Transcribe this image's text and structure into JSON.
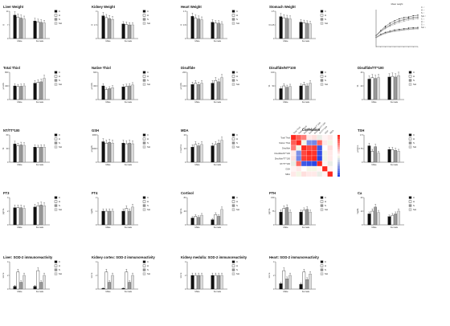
{
  "chart_data": [
    {
      "type": "bar",
      "title": "Liver Weight",
      "ylabel": "g",
      "ylim": [
        0,
        14
      ],
      "categories": [
        "Male",
        "Female"
      ],
      "series": [
        {
          "name": "C",
          "values": [
            12,
            9
          ]
        },
        {
          "name": "H",
          "values": [
            11,
            8.6
          ]
        },
        {
          "name": "S",
          "values": [
            10.5,
            8.3
          ]
        },
        {
          "name": "SH",
          "values": [
            10,
            8
          ]
        }
      ]
    },
    {
      "type": "bar",
      "title": "Kidney Weight",
      "ylabel": "g",
      "ylim": [
        0,
        3
      ],
      "categories": [
        "Male",
        "Female"
      ],
      "series": [
        {
          "name": "C",
          "values": [
            2.5,
            1.6
          ]
        },
        {
          "name": "H",
          "values": [
            2.3,
            1.55
          ]
        },
        {
          "name": "S",
          "values": [
            2.2,
            1.5
          ]
        },
        {
          "name": "SH",
          "values": [
            2.1,
            1.5
          ]
        }
      ]
    },
    {
      "type": "bar",
      "title": "Heart Weight",
      "ylabel": "g",
      "ylim": [
        0,
        1.6
      ],
      "categories": [
        "Male",
        "Female"
      ],
      "series": [
        {
          "name": "C",
          "values": [
            1.3,
            0.95
          ]
        },
        {
          "name": "H",
          "values": [
            1.2,
            0.9
          ]
        },
        {
          "name": "S",
          "values": [
            1.15,
            0.9
          ]
        },
        {
          "name": "SH",
          "values": [
            1.1,
            0.85
          ]
        }
      ]
    },
    {
      "type": "bar",
      "title": "Stomach Weight",
      "ylabel": "g",
      "ylim": [
        0,
        2.5
      ],
      "categories": [
        "Male",
        "Female"
      ],
      "series": [
        {
          "name": "C",
          "values": [
            2,
            1.5
          ]
        },
        {
          "name": "H",
          "values": [
            1.9,
            1.45
          ]
        },
        {
          "name": "S",
          "values": [
            1.85,
            1.4
          ]
        },
        {
          "name": "SH",
          "values": [
            1.8,
            1.35
          ]
        }
      ]
    },
    {
      "type": "bar",
      "title": "Total Thiol",
      "ylabel": "µmol/L",
      "ylim": [
        0,
        800
      ],
      "categories": [
        "Male",
        "Female"
      ],
      "series": [
        {
          "name": "C",
          "values": [
            400,
            480
          ]
        },
        {
          "name": "H",
          "values": [
            380,
            500
          ]
        },
        {
          "name": "S",
          "values": [
            390,
            520
          ]
        },
        {
          "name": "SH",
          "values": [
            400,
            620
          ]
        }
      ]
    },
    {
      "type": "bar",
      "title": "Native Thiol",
      "ylabel": "µmol/L",
      "ylim": [
        0,
        600
      ],
      "categories": [
        "Male",
        "Female"
      ],
      "series": [
        {
          "name": "C",
          "values": [
            300,
            280
          ]
        },
        {
          "name": "H",
          "values": [
            220,
            290
          ]
        },
        {
          "name": "S",
          "values": [
            240,
            300
          ]
        },
        {
          "name": "SH",
          "values": [
            260,
            320
          ]
        }
      ]
    },
    {
      "type": "bar",
      "title": "Disulfide",
      "ylabel": "µmol/L",
      "ylim": [
        0,
        200
      ],
      "categories": [
        "Male",
        "Female"
      ],
      "series": [
        {
          "name": "C",
          "values": [
            110,
            120
          ]
        },
        {
          "name": "H",
          "values": [
            120,
            140
          ]
        },
        {
          "name": "S",
          "values": [
            110,
            130
          ]
        },
        {
          "name": "SH",
          "values": [
            120,
            160
          ]
        }
      ]
    },
    {
      "type": "bar",
      "title": "Disulfide/NT*100",
      "ylabel": "%",
      "ylim": [
        0,
        100
      ],
      "categories": [
        "Male",
        "Female"
      ],
      "series": [
        {
          "name": "C",
          "values": [
            40,
            50
          ]
        },
        {
          "name": "H",
          "values": [
            50,
            55
          ]
        },
        {
          "name": "S",
          "values": [
            45,
            50
          ]
        },
        {
          "name": "SH",
          "values": [
            48,
            60
          ]
        }
      ]
    },
    {
      "type": "bar",
      "title": "Disulfide/TT*100",
      "ylabel": "%",
      "ylim": [
        0,
        40
      ],
      "categories": [
        "Male",
        "Female"
      ],
      "series": [
        {
          "name": "C",
          "values": [
            30,
            33
          ]
        },
        {
          "name": "H",
          "values": [
            32,
            34
          ]
        },
        {
          "name": "S",
          "values": [
            31,
            33
          ]
        },
        {
          "name": "SH",
          "values": [
            32,
            35
          ]
        }
      ]
    },
    {
      "type": "bar",
      "title": "NT/TT*100",
      "ylabel": "%",
      "ylim": [
        0,
        60
      ],
      "categories": [
        "Male",
        "Female"
      ],
      "series": [
        {
          "name": "C",
          "values": [
            40,
            33
          ]
        },
        {
          "name": "H",
          "values": [
            36,
            32
          ]
        },
        {
          "name": "S",
          "values": [
            38,
            33
          ]
        },
        {
          "name": "SH",
          "values": [
            37,
            33
          ]
        }
      ]
    },
    {
      "type": "bar",
      "title": "GSH",
      "ylabel": "µmol/L",
      "ylim": [
        0,
        2000
      ],
      "categories": [
        "Male",
        "Female"
      ],
      "series": [
        {
          "name": "C",
          "values": [
            1500,
            1400
          ]
        },
        {
          "name": "H",
          "values": [
            1400,
            1350
          ]
        },
        {
          "name": "S",
          "values": [
            1450,
            1400
          ]
        },
        {
          "name": "SH",
          "values": [
            1400,
            1350
          ]
        }
      ]
    },
    {
      "type": "bar",
      "title": "MDA",
      "ylabel": "nmol/mL",
      "ylim": [
        0,
        20
      ],
      "categories": [
        "Male",
        "Female"
      ],
      "series": [
        {
          "name": "C",
          "values": [
            11,
            12
          ]
        },
        {
          "name": "H",
          "values": [
            13,
            13
          ]
        },
        {
          "name": "S",
          "values": [
            12,
            14
          ]
        },
        {
          "name": "SH",
          "values": [
            13,
            16
          ]
        }
      ]
    },
    {
      "type": "heatmap",
      "title": "Correlation",
      "rows": [
        "Total Thiol",
        "Native Thiol",
        "Disulfide",
        "Disulfide/NT*100",
        "Disulfide/TT*100",
        "NT/TT*100",
        "GSH",
        "MDA"
      ],
      "cols": [
        "Total Thiol",
        "Native Thiol",
        "Disulfide",
        "Disulfide/NT*100",
        "Disulfide/TT*100",
        "NT/TT*100",
        "GSH",
        "MDA"
      ],
      "values": [
        [
          1.0,
          0.75,
          0.6,
          0.1,
          0.15,
          -0.1,
          0.05,
          0.1
        ],
        [
          0.75,
          1.0,
          -0.05,
          -0.6,
          -0.65,
          0.7,
          0.1,
          -0.05
        ],
        [
          0.6,
          -0.05,
          1.0,
          0.85,
          0.9,
          -0.9,
          0.0,
          0.15
        ],
        [
          0.1,
          -0.6,
          0.85,
          1.0,
          0.95,
          -0.95,
          -0.05,
          0.1
        ],
        [
          0.15,
          -0.65,
          0.9,
          0.95,
          1.0,
          -1.0,
          -0.05,
          0.1
        ],
        [
          -0.1,
          0.7,
          -0.9,
          -0.95,
          -1.0,
          1.0,
          0.05,
          -0.1
        ],
        [
          0.05,
          0.1,
          0.0,
          -0.05,
          -0.05,
          0.05,
          1.0,
          0.05
        ],
        [
          0.1,
          -0.05,
          0.15,
          0.1,
          0.1,
          -0.1,
          0.05,
          1.0
        ]
      ]
    },
    {
      "type": "bar",
      "title": "TSH",
      "ylabel": "µIU/mL",
      "ylim": [
        0,
        1.5
      ],
      "categories": [
        "Male",
        "Female"
      ],
      "series": [
        {
          "name": "C",
          "values": [
            0.9,
            0.7
          ]
        },
        {
          "name": "H",
          "values": [
            0.6,
            0.7
          ]
        },
        {
          "name": "S",
          "values": [
            0.85,
            0.65
          ]
        },
        {
          "name": "SH",
          "values": [
            0.5,
            0.6
          ]
        }
      ]
    },
    {
      "type": "bar",
      "title": "FT3",
      "ylabel": "pg/mL",
      "ylim": [
        0,
        4
      ],
      "categories": [
        "Male",
        "Female"
      ],
      "series": [
        {
          "name": "C",
          "values": [
            2.5,
            2.6
          ]
        },
        {
          "name": "H",
          "values": [
            2.5,
            2.8
          ]
        },
        {
          "name": "S",
          "values": [
            2.5,
            2.9
          ]
        },
        {
          "name": "SH",
          "values": [
            2.4,
            2.8
          ]
        }
      ]
    },
    {
      "type": "bar",
      "title": "FT4",
      "ylabel": "ng/dL",
      "ylim": [
        0,
        2
      ],
      "categories": [
        "Male",
        "Female"
      ],
      "series": [
        {
          "name": "C",
          "values": [
            1.0,
            1.0
          ]
        },
        {
          "name": "H",
          "values": [
            1.0,
            1.2
          ]
        },
        {
          "name": "S",
          "values": [
            1.0,
            1.0
          ]
        },
        {
          "name": "SH",
          "values": [
            1.0,
            1.3
          ]
        }
      ]
    },
    {
      "type": "bar",
      "title": "Cortisol",
      "ylabel": "ng/mL",
      "ylim": [
        0,
        80
      ],
      "categories": [
        "Male",
        "Female"
      ],
      "series": [
        {
          "name": "C",
          "values": [
            20,
            15
          ]
        },
        {
          "name": "H",
          "values": [
            25,
            30
          ]
        },
        {
          "name": "S",
          "values": [
            22,
            25
          ]
        },
        {
          "name": "SH",
          "values": [
            28,
            45
          ]
        }
      ]
    },
    {
      "type": "bar",
      "title": "FTH",
      "ylabel": "pg/mL",
      "ylim": [
        0,
        150
      ],
      "categories": [
        "Male",
        "Female"
      ],
      "series": [
        {
          "name": "C",
          "values": [
            70,
            70
          ]
        },
        {
          "name": "H",
          "values": [
            90,
            80
          ]
        },
        {
          "name": "S",
          "values": [
            95,
            85
          ]
        },
        {
          "name": "SH",
          "values": [
            70,
            70
          ]
        }
      ]
    },
    {
      "type": "bar",
      "title": "Ca",
      "ylabel": "mg/dL",
      "ylim": [
        0,
        20
      ],
      "categories": [
        "Male",
        "Female"
      ],
      "series": [
        {
          "name": "C",
          "values": [
            8,
            6
          ]
        },
        {
          "name": "H",
          "values": [
            10,
            7
          ]
        },
        {
          "name": "S",
          "values": [
            13,
            8
          ]
        },
        {
          "name": "SH",
          "values": [
            9,
            10
          ]
        }
      ]
    },
    {
      "type": "bar",
      "title": "Liver: SOD-2 immunoreactivity",
      "ylabel": "score",
      "ylim": [
        0,
        4
      ],
      "categories": [
        "Male",
        "Female"
      ],
      "series": [
        {
          "name": "C",
          "values": [
            0.4,
            0.4
          ]
        },
        {
          "name": "H",
          "values": [
            2.5,
            2.7
          ]
        },
        {
          "name": "S",
          "values": [
            1.0,
            1.0
          ]
        },
        {
          "name": "SH",
          "values": [
            2.0,
            2.0
          ]
        }
      ]
    },
    {
      "type": "bar",
      "title": "Kidney cortex: SOD-2 immunoreactivity",
      "ylabel": "score",
      "ylim": [
        0,
        4
      ],
      "categories": [
        "Male",
        "Female"
      ],
      "series": [
        {
          "name": "C",
          "values": [
            0.1,
            0.1
          ]
        },
        {
          "name": "H",
          "values": [
            2.5,
            2.5
          ]
        },
        {
          "name": "S",
          "values": [
            1.0,
            1.0
          ]
        },
        {
          "name": "SH",
          "values": [
            2.0,
            2.0
          ]
        }
      ]
    },
    {
      "type": "bar",
      "title": "Kidney medulla: SOD-2 immunoreactivity",
      "ylabel": "score",
      "ylim": [
        0,
        4
      ],
      "categories": [
        "Male",
        "Female"
      ],
      "series": [
        {
          "name": "C",
          "values": [
            2.0,
            2.0
          ]
        },
        {
          "name": "H",
          "values": [
            2.0,
            2.0
          ]
        },
        {
          "name": "S",
          "values": [
            2.0,
            2.0
          ]
        },
        {
          "name": "SH",
          "values": [
            2.0,
            2.0
          ]
        }
      ]
    },
    {
      "type": "bar",
      "title": "Heart: SOD-2 immunoreactivity",
      "ylabel": "score",
      "ylim": [
        0,
        4
      ],
      "categories": [
        "Male",
        "Female"
      ],
      "series": [
        {
          "name": "C",
          "values": [
            0.8,
            0.7
          ]
        },
        {
          "name": "H",
          "values": [
            2.7,
            2.5
          ]
        },
        {
          "name": "S",
          "values": [
            1.5,
            1.4
          ]
        },
        {
          "name": "SH",
          "values": [
            2.0,
            2.2
          ]
        }
      ]
    },
    {
      "type": "line",
      "title": "Mean weight",
      "ylim": [
        0,
        600
      ],
      "x": [
        1,
        2,
        3,
        4,
        5,
        6,
        7,
        8,
        9,
        10
      ],
      "series": [
        {
          "name": "C ♂",
          "values": [
            180,
            260,
            330,
            380,
            420,
            450,
            470,
            480,
            500,
            510
          ]
        },
        {
          "name": "H ♂",
          "values": [
            175,
            250,
            310,
            350,
            390,
            420,
            440,
            460,
            470,
            480
          ]
        },
        {
          "name": "S ♂",
          "values": [
            175,
            245,
            300,
            340,
            380,
            410,
            430,
            450,
            460,
            470
          ]
        },
        {
          "name": "SH ♂",
          "values": [
            170,
            240,
            290,
            330,
            360,
            390,
            410,
            430,
            440,
            450
          ]
        },
        {
          "name": "C ♀",
          "values": [
            150,
            200,
            230,
            250,
            270,
            280,
            290,
            300,
            305,
            310
          ]
        },
        {
          "name": "H ♀",
          "values": [
            145,
            190,
            220,
            240,
            255,
            265,
            275,
            285,
            290,
            295
          ]
        },
        {
          "name": "S ♀",
          "values": [
            140,
            185,
            215,
            235,
            250,
            260,
            270,
            280,
            285,
            290
          ]
        },
        {
          "name": "SH ♀",
          "values": [
            140,
            180,
            210,
            230,
            245,
            255,
            265,
            275,
            280,
            285
          ]
        }
      ]
    }
  ]
}
